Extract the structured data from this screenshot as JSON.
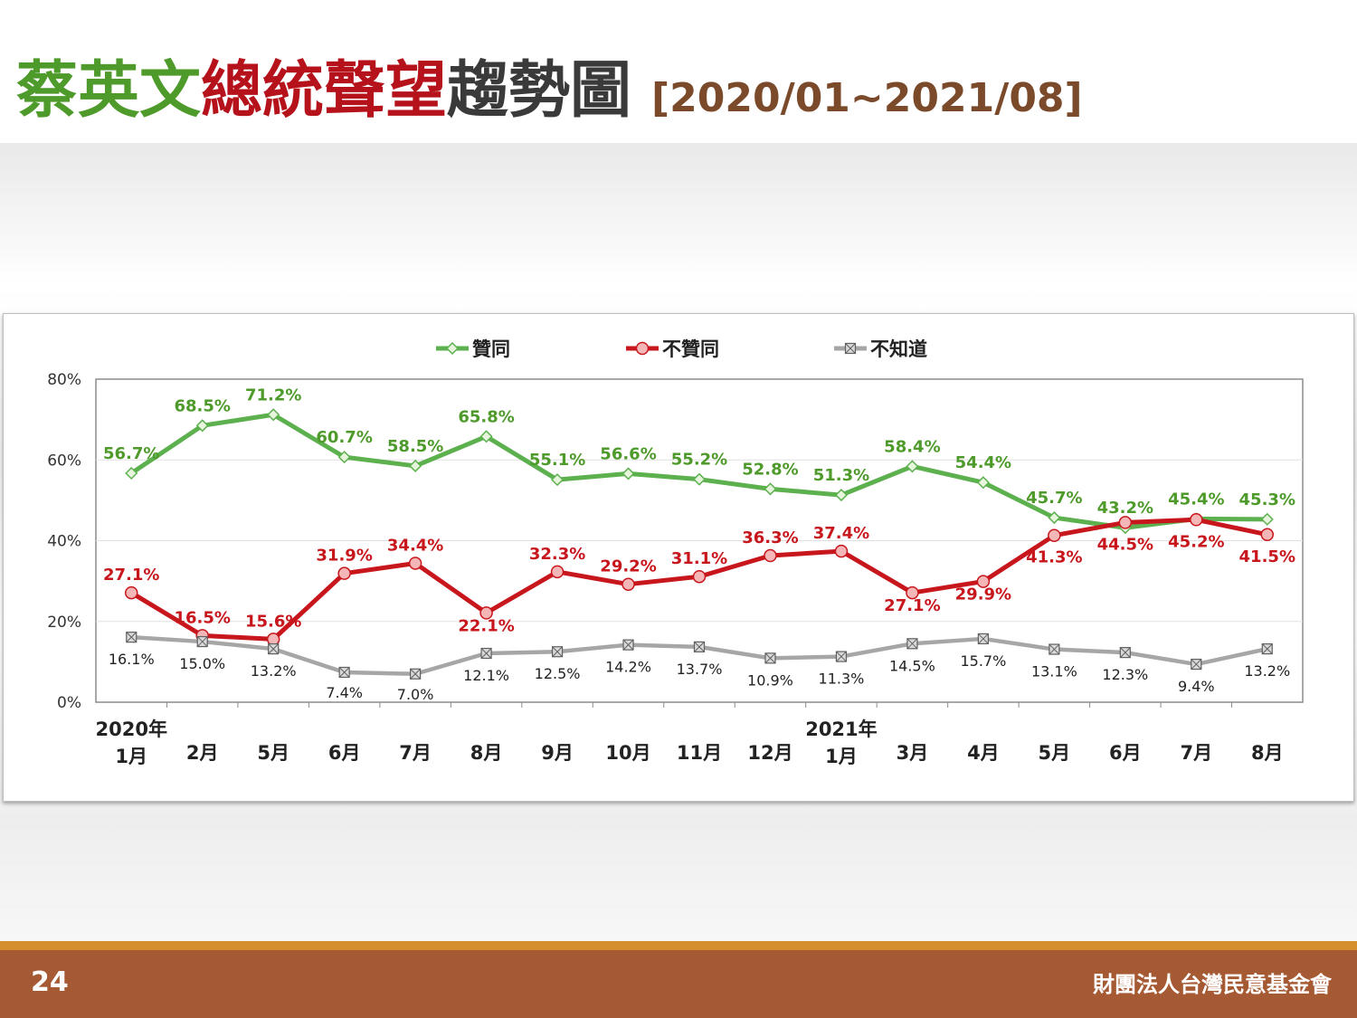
{
  "slide": {
    "title_part1": "蔡英文",
    "title_part2": "總統聲望",
    "title_part3": "趨勢圖",
    "title_range": "[2020/01~2021/08]",
    "page_number": "24",
    "organization": "財團法人台灣民意基金會"
  },
  "chart_data": {
    "type": "line",
    "categories": [
      [
        "2020年",
        "1月"
      ],
      [
        "2月"
      ],
      [
        "5月"
      ],
      [
        "6月"
      ],
      [
        "7月"
      ],
      [
        "8月"
      ],
      [
        "9月"
      ],
      [
        "10月"
      ],
      [
        "11月"
      ],
      [
        "12月"
      ],
      [
        "2021年",
        "1月"
      ],
      [
        "3月"
      ],
      [
        "4月"
      ],
      [
        "5月"
      ],
      [
        "6月"
      ],
      [
        "7月"
      ],
      [
        "8月"
      ]
    ],
    "ylim": [
      0,
      80
    ],
    "yticks": [
      0,
      20,
      40,
      60,
      80
    ],
    "ytick_labels": [
      "0%",
      "20%",
      "40%",
      "60%",
      "80%"
    ],
    "grid": true,
    "legend_position": "top",
    "series": [
      {
        "name": "贊同",
        "color": "#5cb04e",
        "marker": "diamond",
        "values": [
          56.7,
          68.5,
          71.2,
          60.7,
          58.5,
          65.8,
          55.1,
          56.6,
          55.2,
          52.8,
          51.3,
          58.4,
          54.4,
          45.7,
          43.2,
          45.4,
          45.3
        ],
        "labels": [
          "56.7%",
          "68.5%",
          "71.2%",
          "60.7%",
          "58.5%",
          "65.8%",
          "55.1%",
          "56.6%",
          "55.2%",
          "52.8%",
          "51.3%",
          "58.4%",
          "54.4%",
          "45.7%",
          "43.2%",
          "45.4%",
          "45.3%"
        ]
      },
      {
        "name": "不贊同",
        "color": "#c8161d",
        "marker": "circle",
        "values": [
          27.1,
          16.5,
          15.6,
          31.9,
          34.4,
          22.1,
          32.3,
          29.2,
          31.1,
          36.3,
          37.4,
          27.1,
          29.9,
          41.3,
          44.5,
          45.2,
          41.5
        ],
        "labels": [
          "27.1%",
          "16.5%",
          "15.6%",
          "31.9%",
          "34.4%",
          "22.1%",
          "32.3%",
          "29.2%",
          "31.1%",
          "36.3%",
          "37.4%",
          "27.1%",
          "29.9%",
          "41.3%",
          "44.5%",
          "45.2%",
          "41.5%"
        ]
      },
      {
        "name": "不知道",
        "color": "#a6a6a6",
        "marker": "square-x",
        "values": [
          16.1,
          15.0,
          13.2,
          7.4,
          7.0,
          12.1,
          12.5,
          14.2,
          13.7,
          10.9,
          11.3,
          14.5,
          15.7,
          13.1,
          12.3,
          9.4,
          13.2
        ],
        "labels": [
          "16.1%",
          "15.0%",
          "13.2%",
          "7.4%",
          "7.0%",
          "12.1%",
          "12.5%",
          "14.2%",
          "13.7%",
          "10.9%",
          "11.3%",
          "14.5%",
          "15.7%",
          "13.1%",
          "12.3%",
          "9.4%",
          "13.2%"
        ]
      }
    ]
  }
}
